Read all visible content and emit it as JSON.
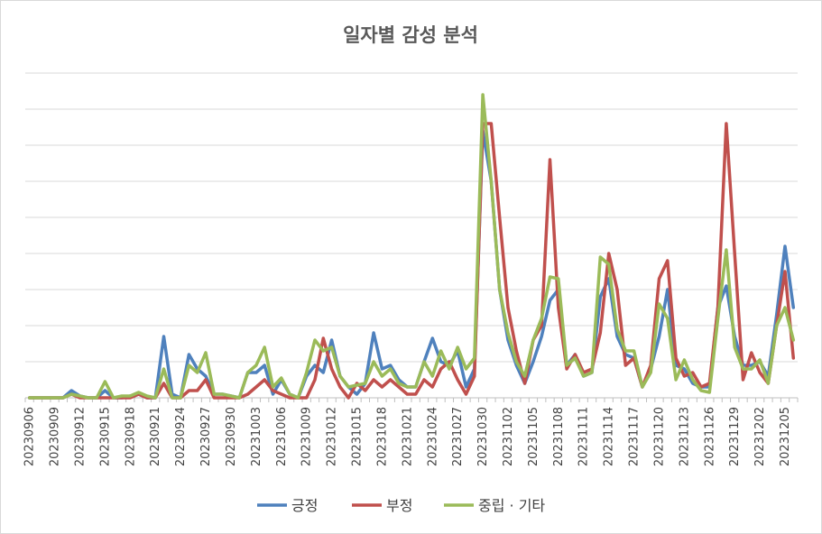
{
  "chart_data": {
    "type": "line",
    "title": "일자별 감성 분석",
    "xlabel": "",
    "ylabel": "",
    "grid": true,
    "legend_position": "bottom",
    "ylim": [
      0,
      90
    ],
    "y_ticks": [
      0,
      10,
      20,
      30,
      40,
      50,
      60,
      70,
      80,
      90
    ],
    "y_tick_labels_shown": false,
    "x_tick_labels": [
      "20230906",
      "20230909",
      "20230912",
      "20230915",
      "20230918",
      "20230921",
      "20230924",
      "20230927",
      "20230930",
      "20231003",
      "20231006",
      "20231009",
      "20231012",
      "20231015",
      "20231018",
      "20231021",
      "20231024",
      "20231027",
      "20231030",
      "20231102",
      "20231105",
      "20231108",
      "20231111",
      "20231114",
      "20231117",
      "20231120",
      "20231123",
      "20231126",
      "20231129",
      "20231202",
      "20231205"
    ],
    "tick_interval": 3,
    "x": [
      "20230906",
      "20230907",
      "20230908",
      "20230909",
      "20230910",
      "20230911",
      "20230912",
      "20230913",
      "20230914",
      "20230915",
      "20230916",
      "20230917",
      "20230918",
      "20230919",
      "20230920",
      "20230921",
      "20230922",
      "20230923",
      "20230924",
      "20230925",
      "20230926",
      "20230927",
      "20230928",
      "20230929",
      "20230930",
      "20231001",
      "20231002",
      "20231003",
      "20231004",
      "20231005",
      "20231006",
      "20231007",
      "20231008",
      "20231009",
      "20231010",
      "20231011",
      "20231012",
      "20231013",
      "20231014",
      "20231015",
      "20231016",
      "20231017",
      "20231018",
      "20231019",
      "20231020",
      "20231021",
      "20231022",
      "20231023",
      "20231024",
      "20231025",
      "20231026",
      "20231027",
      "20231028",
      "20231029",
      "20231030",
      "20231031",
      "20231101",
      "20231102",
      "20231103",
      "20231104",
      "20231105",
      "20231106",
      "20231107",
      "20231108",
      "20231109",
      "20231110",
      "20231111",
      "20231112",
      "20231113",
      "20231114",
      "20231115",
      "20231116",
      "20231117",
      "20231118",
      "20231119",
      "20231120",
      "20231121",
      "20231122",
      "20231123",
      "20231124",
      "20231125",
      "20231126",
      "20231127",
      "20231128",
      "20231129",
      "20231130",
      "20231201",
      "20231202",
      "20231203",
      "20231204",
      "20231205",
      "20231206"
    ],
    "series": [
      {
        "name": "긍정",
        "color": "#4f81bd",
        "values": [
          0,
          0,
          0,
          0,
          0,
          2,
          0.5,
          0,
          0,
          2,
          0,
          0,
          0.5,
          1,
          0,
          0,
          17,
          1,
          0,
          12,
          8,
          6,
          1,
          1,
          0.5,
          0,
          7,
          7,
          9,
          1,
          5,
          1,
          0,
          6,
          9,
          7,
          16,
          6,
          3,
          1,
          4,
          18,
          8,
          9,
          5,
          3,
          3,
          10,
          16.5,
          10,
          9,
          13,
          3,
          8,
          74,
          60,
          30,
          16,
          9,
          4,
          10,
          17,
          27,
          30,
          9,
          12,
          6,
          7,
          28,
          33,
          17,
          12,
          11,
          3,
          8,
          17,
          30,
          9,
          8,
          4,
          3,
          3,
          25,
          31,
          17,
          9,
          9,
          10,
          6,
          23,
          42,
          25
        ]
      },
      {
        "name": "부정",
        "color": "#c0504d",
        "values": [
          0,
          0,
          0,
          0,
          0,
          1,
          0,
          0,
          0,
          0,
          0,
          0,
          0,
          1,
          0,
          0,
          4,
          0,
          0,
          2,
          2,
          5,
          0,
          0,
          0,
          0,
          1,
          3,
          5,
          2,
          1,
          0,
          0,
          0,
          5,
          16.5,
          8,
          3,
          0,
          4,
          2,
          5,
          3,
          5,
          3,
          1,
          1,
          5,
          3,
          8,
          10,
          5,
          1,
          6,
          76,
          76,
          50,
          25,
          13,
          4,
          16,
          20,
          66,
          25,
          8,
          12,
          7,
          8,
          18,
          40,
          30,
          9,
          11,
          3,
          9,
          33,
          38,
          11,
          6,
          7,
          3,
          4,
          25,
          76,
          40,
          5,
          12.5,
          7,
          4,
          20,
          35,
          11
        ]
      },
      {
        "name": "중립 · 기타",
        "color": "#9bbb59",
        "values": [
          0,
          0,
          0,
          0,
          0,
          1,
          0.5,
          0,
          0,
          4.5,
          0,
          0.5,
          0.5,
          1.5,
          0.5,
          0,
          8,
          0,
          0,
          9,
          7,
          12.5,
          1,
          1,
          0.5,
          0,
          7,
          9,
          14,
          3,
          5.5,
          1,
          0,
          7,
          16,
          13,
          14,
          6,
          3,
          3.5,
          4,
          10,
          6,
          8,
          4,
          3,
          3,
          10,
          6,
          13,
          8,
          14,
          8,
          11,
          84,
          60,
          30,
          18,
          10,
          6,
          16,
          22,
          33.5,
          33,
          9,
          11,
          6,
          7,
          39,
          37,
          19,
          13,
          13,
          3,
          7,
          26,
          22,
          5,
          10.5,
          5,
          2,
          1.5,
          22,
          41,
          14,
          8,
          8,
          10.5,
          4,
          20,
          25,
          16
        ]
      }
    ]
  }
}
